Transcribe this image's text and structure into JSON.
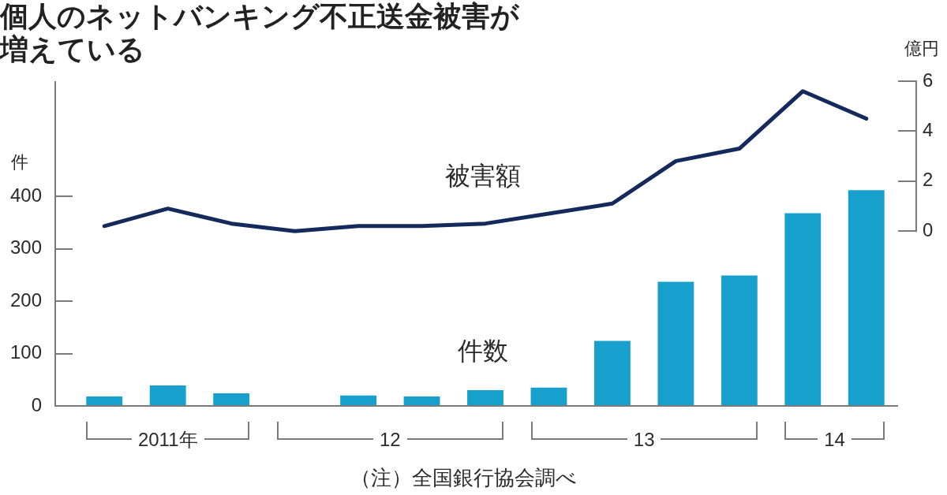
{
  "chart_data": {
    "type": "bar",
    "title": "個人のネットバンキング不正送金被害が増えている",
    "ylabel": "件",
    "y2label": "億円",
    "annotations": [
      "2011年",
      "12",
      "13",
      "14",
      "（注）全国銀行協会調べ"
    ],
    "categories": [
      null,
      null,
      null,
      null,
      null,
      null,
      null,
      null,
      null,
      null,
      null,
      null,
      null
    ],
    "ylim": [
      0,
      620
    ],
    "yticks": [
      0,
      100,
      200,
      300,
      400
    ],
    "y2lim": [
      -7,
      6
    ],
    "y2ticks": [
      0,
      2,
      4,
      6
    ],
    "series": [
      {
        "name": "被害額",
        "type": "line",
        "axis": "y2",
        "color": "#142a5c",
        "values": [
          0.2,
          0.9,
          0.3,
          0.0,
          0.2,
          0.2,
          0.3,
          0.7,
          1.1,
          2.8,
          3.3,
          5.6,
          4.5
        ]
      },
      {
        "name": "件数",
        "color": "#18a0cd",
        "values": [
          18,
          39,
          24,
          null,
          20,
          18,
          30,
          35,
          124,
          237,
          249,
          368,
          412
        ]
      }
    ]
  }
}
